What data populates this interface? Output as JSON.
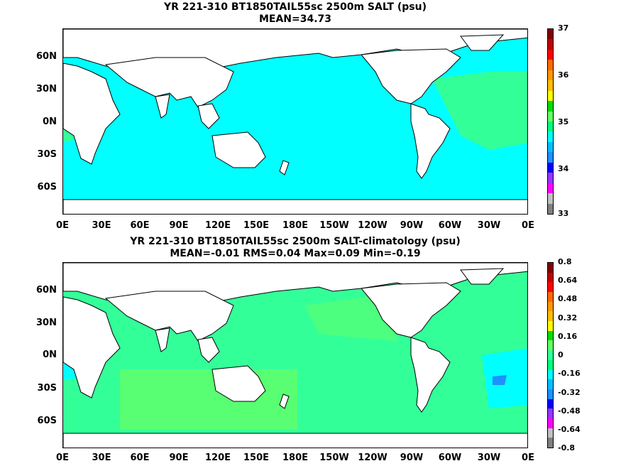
{
  "panels": [
    {
      "title_line1": "YR 221-310 BT1850TAIL55sc 2500m SALT (psu)",
      "title_line2": "MEAN=34.73",
      "colorbar_labels": [
        "37",
        "36",
        "35",
        "34",
        "33"
      ],
      "colorbar_colors": [
        "#800000",
        "#c00000",
        "#ff0000",
        "#ff6a00",
        "#ff9900",
        "#ffc000",
        "#ffff00",
        "#00dd00",
        "#66ff66",
        "#00ff80",
        "#00ffff",
        "#00bfff",
        "#1e90ff",
        "#0000ff",
        "#9933ff",
        "#ff00ff",
        "#c0c0c0",
        "#808080"
      ],
      "ocean_color": "#00ffff",
      "secondary_color": "#33ff99"
    },
    {
      "title_line1": "YR 221-310 BT1850TAIL55sc 2500m SALT-climatology (psu)",
      "title_line2": "MEAN=-0.01   RMS=0.04   Max=0.09   Min=-0.19",
      "colorbar_labels": [
        "0.8",
        "0.64",
        "0.48",
        "0.32",
        "0.16",
        "0",
        "-0.16",
        "-0.32",
        "-0.48",
        "-0.64",
        "-0.8"
      ],
      "colorbar_colors": [
        "#800000",
        "#c00000",
        "#ff0000",
        "#ff6a00",
        "#ff9900",
        "#ffc000",
        "#ffff00",
        "#00dd00",
        "#66ff66",
        "#33ff99",
        "#00ff80",
        "#00ffff",
        "#00bfff",
        "#1e90ff",
        "#0000ff",
        "#9933ff",
        "#ff00ff",
        "#c0c0c0",
        "#808080"
      ],
      "ocean_color": "#33ff99",
      "secondary_color": "#00ffff"
    }
  ],
  "latitude_labels": [
    "60N",
    "30N",
    "0N",
    "30S",
    "60S"
  ],
  "longitude_labels": [
    "0E",
    "30E",
    "60E",
    "90E",
    "120E",
    "150E",
    "180E",
    "150W",
    "120W",
    "90W",
    "60W",
    "30W",
    "0E"
  ]
}
